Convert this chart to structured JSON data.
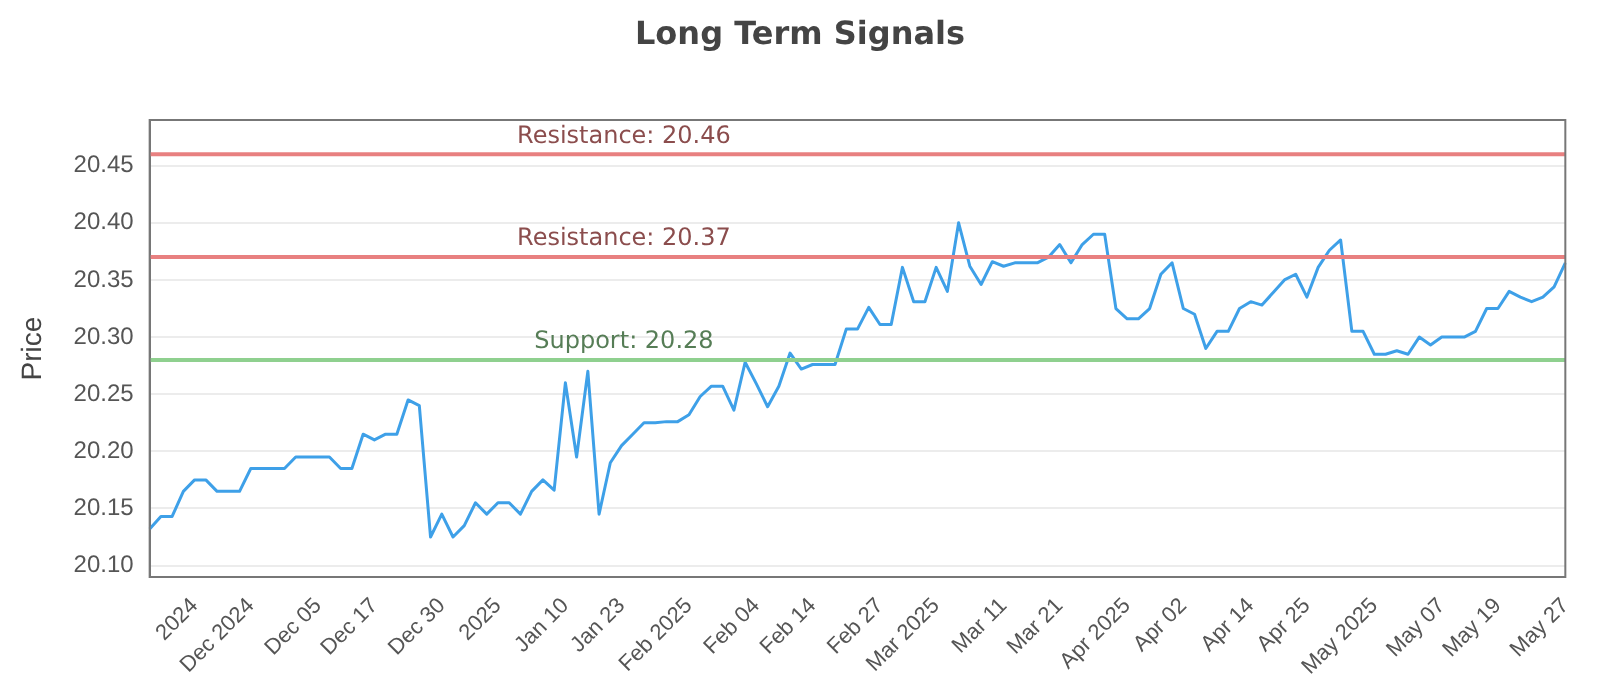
{
  "chart_data": {
    "type": "line",
    "title": "Long Term Signals",
    "ylabel": "Price",
    "categories": [
      null,
      null,
      null,
      null,
      "2024",
      null,
      null,
      null,
      null,
      "Dec 2024",
      null,
      null,
      null,
      null,
      null,
      "Dec 05",
      null,
      null,
      null,
      null,
      "Dec 17",
      null,
      null,
      null,
      null,
      null,
      "Dec 30",
      null,
      null,
      null,
      null,
      "2025",
      null,
      null,
      null,
      null,
      null,
      "Jan 10",
      null,
      null,
      null,
      null,
      "Jan 23",
      null,
      null,
      null,
      null,
      null,
      "Feb 2025",
      null,
      null,
      null,
      null,
      null,
      "Feb 04",
      null,
      null,
      null,
      null,
      "Feb 14",
      null,
      null,
      null,
      null,
      null,
      "Feb 27",
      null,
      null,
      null,
      null,
      "Mar 2025",
      null,
      null,
      null,
      null,
      null,
      "Mar 11",
      null,
      null,
      null,
      null,
      "Mar 21",
      null,
      null,
      null,
      null,
      null,
      "Apr 2025",
      null,
      null,
      null,
      null,
      "Apr 02",
      null,
      null,
      null,
      null,
      null,
      "Apr 14",
      null,
      null,
      null,
      null,
      "Apr 25",
      null,
      null,
      null,
      null,
      null,
      "May 2025",
      null,
      null,
      null,
      null,
      null,
      "May 07",
      null,
      null,
      null,
      null,
      "May 19",
      null,
      null,
      null,
      null,
      null,
      "May 27"
    ],
    "series": [
      {
        "color": "#3ea0e8",
        "values": [
          20.132,
          20.143,
          20.143,
          20.165,
          20.175,
          20.175,
          20.165,
          20.165,
          20.165,
          20.185,
          20.185,
          20.185,
          20.185,
          20.195,
          20.195,
          20.195,
          20.195,
          20.185,
          20.185,
          20.215,
          20.21,
          20.215,
          20.215,
          20.245,
          20.24,
          20.125,
          20.145,
          20.125,
          20.135,
          20.155,
          20.145,
          20.155,
          20.155,
          20.145,
          20.165,
          20.175,
          20.166,
          20.26,
          20.195,
          20.27,
          20.145,
          20.19,
          20.205,
          20.215,
          20.225,
          20.225,
          20.226,
          20.226,
          20.232,
          20.248,
          20.257,
          20.257,
          20.236,
          20.278,
          20.259,
          20.239,
          20.257,
          20.286,
          20.272,
          20.276,
          20.276,
          20.276,
          20.307,
          20.307,
          20.326,
          20.311,
          20.311,
          20.361,
          20.331,
          20.331,
          20.361,
          20.34,
          20.4,
          20.362,
          20.346,
          20.366,
          20.362,
          20.365,
          20.365,
          20.365,
          20.37,
          20.381,
          20.365,
          20.381,
          20.39,
          20.39,
          20.325,
          20.316,
          20.316,
          20.325,
          20.355,
          20.365,
          20.325,
          20.32,
          20.29,
          20.305,
          20.305,
          20.325,
          20.331,
          20.328,
          20.339,
          20.35,
          20.355,
          20.335,
          20.361,
          20.376,
          20.385,
          20.305,
          20.305,
          20.285,
          20.285,
          20.288,
          20.285,
          20.3,
          20.293,
          20.3,
          20.3,
          20.3,
          20.305,
          20.325,
          20.325,
          20.34,
          20.335,
          20.331,
          20.335,
          20.344,
          20.365
        ]
      }
    ],
    "ylim": [
      20.09,
      20.49
    ],
    "yticks": [
      {
        "value": 20.1,
        "label": "20.10"
      },
      20.15,
      {
        "value": 20.2,
        "label": "20.20"
      },
      20.25,
      {
        "value": 20.3,
        "label": "20.30"
      },
      20.35,
      {
        "value": 20.4,
        "label": "20.40"
      },
      20.45
    ],
    "ref_lines": [
      {
        "axis": "y",
        "value": 20.46,
        "label": "Resistance: 20.46",
        "color": "#e88080"
      },
      {
        "axis": "y",
        "value": 20.37,
        "label": "Resistance: 20.37",
        "color": "#e88080"
      },
      {
        "axis": "y",
        "value": 20.28,
        "label": "Support: 20.28",
        "color": "#8fd08f"
      }
    ],
    "grid": "y",
    "legend": false,
    "marker": "none",
    "line_style": "solid"
  }
}
